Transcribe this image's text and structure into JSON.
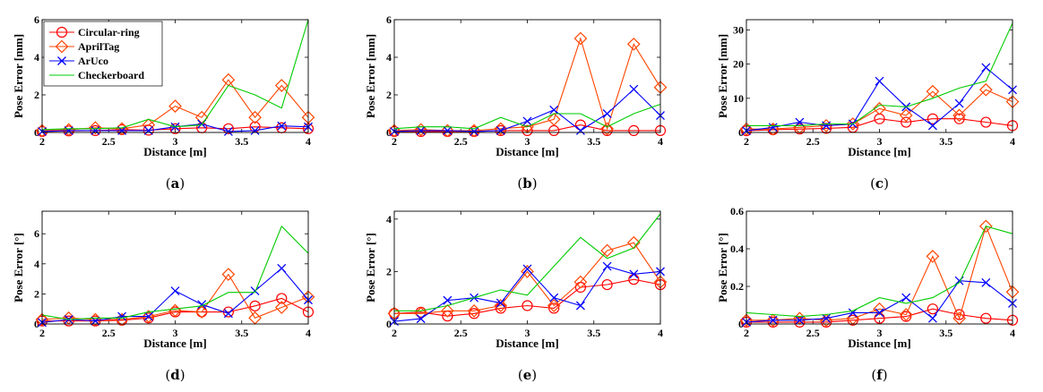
{
  "colors": {
    "circular_ring": "#ff0000",
    "apriltag": "#ff4500",
    "aruco": "#0000ff",
    "checkerboard": "#00cc00"
  },
  "legend": {
    "placement": "top-left (panel a)",
    "entries": [
      "Circular-ring",
      "AprilTag",
      "ArUco",
      "Checkerboard"
    ]
  },
  "chart_data": [
    {
      "type": "line",
      "caption_letter": "a",
      "xlabel": "Distance [m]",
      "ylabel": "Pose Error [mm]",
      "xlim": [
        2,
        4
      ],
      "ylim": [
        0,
        6
      ],
      "xticks": [
        2,
        2.5,
        3,
        3.5,
        4
      ],
      "yticks": [
        0,
        2,
        4,
        6
      ],
      "x": [
        2.0,
        2.2,
        2.4,
        2.6,
        2.8,
        3.0,
        3.2,
        3.4,
        3.6,
        3.8,
        4.0
      ],
      "series": [
        {
          "name": "Circular-ring",
          "values": [
            0.05,
            0.08,
            0.1,
            0.15,
            0.12,
            0.2,
            0.25,
            0.2,
            0.3,
            0.25,
            0.2
          ]
        },
        {
          "name": "AprilTag",
          "values": [
            0.1,
            0.15,
            0.25,
            0.2,
            0.4,
            1.4,
            0.8,
            2.8,
            0.8,
            2.5,
            0.8
          ]
        },
        {
          "name": "ArUco",
          "values": [
            0.05,
            0.1,
            0.1,
            0.1,
            0.1,
            0.3,
            0.45,
            0.05,
            0.1,
            0.35,
            0.3
          ]
        },
        {
          "name": "Checkerboard",
          "values": [
            0.15,
            0.2,
            0.2,
            0.25,
            0.7,
            0.3,
            0.4,
            2.5,
            2.0,
            1.3,
            6.0
          ]
        }
      ]
    },
    {
      "type": "line",
      "caption_letter": "b",
      "xlabel": "Distance [m]",
      "ylabel": "Pose Error [mm]",
      "xlim": [
        2,
        4
      ],
      "ylim": [
        0,
        6
      ],
      "xticks": [
        2,
        2.5,
        3,
        3.5,
        4
      ],
      "yticks": [
        0,
        2,
        4,
        6
      ],
      "x": [
        2.0,
        2.2,
        2.4,
        2.6,
        2.8,
        3.0,
        3.2,
        3.4,
        3.6,
        3.8,
        4.0
      ],
      "series": [
        {
          "name": "Circular-ring",
          "values": [
            0.05,
            0.05,
            0.05,
            0.05,
            0.1,
            0.1,
            0.1,
            0.4,
            0.1,
            0.1,
            0.1
          ]
        },
        {
          "name": "AprilTag",
          "values": [
            0.1,
            0.15,
            0.1,
            0.1,
            0.2,
            0.3,
            0.7,
            5.0,
            0.2,
            4.7,
            2.4
          ]
        },
        {
          "name": "ArUco",
          "values": [
            0.05,
            0.1,
            0.1,
            0.05,
            0.1,
            0.6,
            1.2,
            0.1,
            1.0,
            2.3,
            0.9
          ]
        },
        {
          "name": "Checkerboard",
          "values": [
            0.2,
            0.3,
            0.3,
            0.2,
            0.8,
            0.3,
            1.0,
            1.0,
            0.3,
            1.0,
            1.5
          ]
        }
      ]
    },
    {
      "type": "line",
      "caption_letter": "c",
      "xlabel": "Distance [m]",
      "ylabel": "Pose Error [mm]",
      "xlim": [
        2,
        4
      ],
      "ylim": [
        0,
        33
      ],
      "xticks": [
        2,
        2.5,
        3,
        3.5,
        4
      ],
      "yticks": [
        0,
        10,
        20,
        30
      ],
      "x": [
        2.0,
        2.2,
        2.4,
        2.6,
        2.8,
        3.0,
        3.2,
        3.4,
        3.6,
        3.8,
        4.0
      ],
      "series": [
        {
          "name": "Circular-ring",
          "values": [
            0.5,
            0.8,
            1.0,
            1.2,
            1.5,
            4.0,
            3.0,
            4.0,
            4.0,
            3.0,
            2.0
          ]
        },
        {
          "name": "AprilTag",
          "values": [
            1.0,
            1.0,
            1.5,
            2.0,
            2.5,
            7.0,
            5.0,
            12.0,
            5.0,
            12.5,
            9.0
          ]
        },
        {
          "name": "ArUco",
          "values": [
            0.5,
            1.5,
            3.0,
            2.0,
            2.5,
            15.0,
            7.5,
            2.0,
            8.5,
            19.0,
            12.5
          ]
        },
        {
          "name": "Checkerboard",
          "values": [
            2.0,
            2.0,
            2.0,
            2.5,
            2.5,
            8.0,
            7.5,
            10.0,
            13.0,
            15.0,
            32.0
          ]
        }
      ]
    },
    {
      "type": "line",
      "caption_letter": "d",
      "xlabel": "Distance [m]",
      "ylabel": "Pose Error [°]",
      "xlim": [
        2,
        4
      ],
      "ylim": [
        0,
        7.5
      ],
      "xticks": [
        2,
        2.5,
        3,
        3.5,
        4
      ],
      "yticks": [
        0,
        2,
        4,
        6
      ],
      "x": [
        2.0,
        2.2,
        2.4,
        2.6,
        2.8,
        3.0,
        3.2,
        3.4,
        3.6,
        3.8,
        4.0
      ],
      "series": [
        {
          "name": "Circular-ring",
          "values": [
            0.2,
            0.2,
            0.2,
            0.25,
            0.4,
            0.8,
            0.8,
            0.8,
            1.2,
            1.7,
            0.8
          ]
        },
        {
          "name": "AprilTag",
          "values": [
            0.3,
            0.4,
            0.3,
            0.3,
            0.5,
            0.9,
            0.8,
            3.3,
            0.4,
            1.1,
            1.8
          ]
        },
        {
          "name": "ArUco",
          "values": [
            0.1,
            0.3,
            0.2,
            0.5,
            0.5,
            2.2,
            1.3,
            0.7,
            2.2,
            3.7,
            1.6
          ]
        },
        {
          "name": "Checkerboard",
          "values": [
            0.6,
            0.3,
            0.4,
            0.4,
            0.8,
            1.0,
            1.2,
            2.1,
            2.1,
            6.5,
            4.7
          ]
        }
      ]
    },
    {
      "type": "line",
      "caption_letter": "e",
      "xlabel": "Distance [m]",
      "ylabel": "Pose Error [°]",
      "xlim": [
        2,
        4
      ],
      "ylim": [
        0,
        4.3
      ],
      "xticks": [
        2,
        2.5,
        3,
        3.5,
        4
      ],
      "yticks": [
        0,
        2,
        4
      ],
      "x": [
        2.0,
        2.2,
        2.4,
        2.6,
        2.8,
        3.0,
        3.2,
        3.4,
        3.6,
        3.8,
        4.0
      ],
      "series": [
        {
          "name": "Circular-ring",
          "values": [
            0.4,
            0.45,
            0.3,
            0.4,
            0.6,
            0.7,
            0.6,
            1.4,
            1.5,
            1.7,
            1.5
          ]
        },
        {
          "name": "AprilTag",
          "values": [
            0.4,
            0.4,
            0.5,
            0.5,
            0.7,
            2.0,
            0.7,
            1.6,
            2.8,
            3.1,
            1.6
          ]
        },
        {
          "name": "ArUco",
          "values": [
            0.1,
            0.2,
            0.9,
            1.0,
            0.8,
            2.1,
            1.0,
            0.7,
            2.2,
            1.9,
            2.0
          ]
        },
        {
          "name": "Checkerboard",
          "values": [
            0.5,
            0.5,
            0.7,
            1.0,
            1.3,
            1.1,
            2.2,
            3.3,
            2.5,
            2.9,
            4.2
          ]
        }
      ]
    },
    {
      "type": "line",
      "caption_letter": "f",
      "xlabel": "Distance [m]",
      "ylabel": "Pose Error [°]",
      "xlim": [
        2,
        4
      ],
      "ylim": [
        0,
        0.6
      ],
      "xticks": [
        2,
        2.5,
        3,
        3.5,
        4
      ],
      "yticks": [
        0,
        0.2,
        0.4,
        0.6
      ],
      "x": [
        2.0,
        2.2,
        2.4,
        2.6,
        2.8,
        3.0,
        3.2,
        3.4,
        3.6,
        3.8,
        4.0
      ],
      "series": [
        {
          "name": "Circular-ring",
          "values": [
            0.01,
            0.01,
            0.01,
            0.01,
            0.02,
            0.03,
            0.04,
            0.08,
            0.05,
            0.03,
            0.02
          ]
        },
        {
          "name": "AprilTag",
          "values": [
            0.02,
            0.02,
            0.03,
            0.02,
            0.03,
            0.08,
            0.05,
            0.36,
            0.03,
            0.52,
            0.17
          ]
        },
        {
          "name": "ArUco",
          "values": [
            0.01,
            0.02,
            0.02,
            0.03,
            0.06,
            0.06,
            0.14,
            0.03,
            0.23,
            0.22,
            0.11
          ]
        },
        {
          "name": "Checkerboard",
          "values": [
            0.06,
            0.05,
            0.04,
            0.05,
            0.07,
            0.14,
            0.11,
            0.14,
            0.22,
            0.52,
            0.48
          ]
        }
      ]
    }
  ]
}
